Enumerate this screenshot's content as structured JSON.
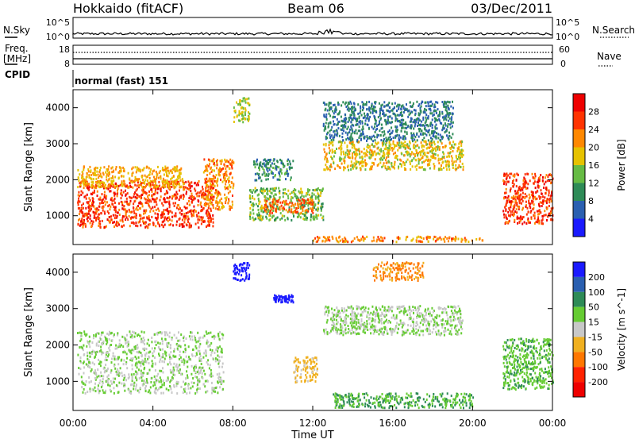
{
  "header": {
    "station": "Hokkaido (fitACF)",
    "beam": "Beam 06",
    "date": "03/Dec/2011"
  },
  "top_panels": {
    "nsky": {
      "label": "N.Sky",
      "ticks": [
        "10^5",
        "10^0"
      ]
    },
    "nsearch": {
      "label": "N.Search",
      "ticks": [
        "10^5",
        "10^0"
      ]
    },
    "freq": {
      "label_line1": "Freq.",
      "label_line2": "[MHz]",
      "ticks": [
        "18",
        "8"
      ]
    },
    "nave": {
      "label": "Nave",
      "ticks": [
        "60",
        "0"
      ]
    },
    "cpid": {
      "label": "CPID",
      "value": "normal (fast) 151"
    }
  },
  "chart_data": [
    {
      "type": "heatmap",
      "name": "power",
      "ylabel": "Slant Range [km]",
      "xlabel": "Time UT",
      "x_ticks": [
        "00:00",
        "04:00",
        "08:00",
        "12:00",
        "16:00",
        "20:00",
        "00:00"
      ],
      "x_range_hours": [
        0,
        24
      ],
      "y_ticks": [
        1000,
        2000,
        3000,
        4000
      ],
      "y_range_km": [
        200,
        4500
      ],
      "colorbar": {
        "label": "Power [dB]",
        "tick_labels": [
          "4",
          "8",
          "12",
          "16",
          "20",
          "24",
          "28"
        ],
        "colors": [
          "#1a1aff",
          "#2a5fb0",
          "#2e8b57",
          "#66bb44",
          "#e6c200",
          "#ff8800",
          "#ff3300",
          "#ee0000"
        ]
      },
      "regions": [
        {
          "x": [
            0.2,
            7.0
          ],
          "y": [
            700,
            2000
          ],
          "value": 28
        },
        {
          "x": [
            0.2,
            5.5
          ],
          "y": [
            1800,
            2400
          ],
          "value": 22
        },
        {
          "x": [
            6.5,
            8.0
          ],
          "y": [
            1200,
            2600
          ],
          "value": 24
        },
        {
          "x": [
            8.0,
            8.8
          ],
          "y": [
            3600,
            4300
          ],
          "value": 18
        },
        {
          "x": [
            8.8,
            12.5
          ],
          "y": [
            900,
            1800
          ],
          "value": 16
        },
        {
          "x": [
            9.5,
            12.0
          ],
          "y": [
            1100,
            1500
          ],
          "value": 26
        },
        {
          "x": [
            9.0,
            11.0
          ],
          "y": [
            2000,
            2600
          ],
          "value": 12
        },
        {
          "x": [
            12.5,
            19.5
          ],
          "y": [
            2300,
            3100
          ],
          "value": 20
        },
        {
          "x": [
            12.5,
            19.0
          ],
          "y": [
            3100,
            4200
          ],
          "value": 10
        },
        {
          "x": [
            12.0,
            20.5
          ],
          "y": [
            300,
            450
          ],
          "value": 24
        },
        {
          "x": [
            21.5,
            24.0
          ],
          "y": [
            800,
            2200
          ],
          "value": 28
        }
      ]
    },
    {
      "type": "heatmap",
      "name": "velocity",
      "ylabel": "Slant Range [km]",
      "xlabel": "Time UT",
      "x_ticks": [
        "00:00",
        "04:00",
        "08:00",
        "12:00",
        "16:00",
        "20:00",
        "00:00"
      ],
      "x_range_hours": [
        0,
        24
      ],
      "y_ticks": [
        1000,
        2000,
        3000,
        4000
      ],
      "y_range_km": [
        200,
        4500
      ],
      "colorbar": {
        "label": "Velocity [m s^-1]",
        "tick_labels": [
          "200",
          "100",
          "50",
          "15",
          "-15",
          "-50",
          "-100",
          "-200"
        ],
        "colors": [
          "#1a1aff",
          "#2a5fb0",
          "#2e8b57",
          "#66cc33",
          "#c8c8c8",
          "#f0b020",
          "#ff7700",
          "#ff2200",
          "#ee0000"
        ]
      },
      "regions": [
        {
          "x": [
            0.2,
            7.5
          ],
          "y": [
            700,
            2400
          ],
          "value": 0
        },
        {
          "x": [
            8.0,
            8.8
          ],
          "y": [
            3800,
            4300
          ],
          "value": 200
        },
        {
          "x": [
            10.0,
            11.0
          ],
          "y": [
            3200,
            3400
          ],
          "value": 200
        },
        {
          "x": [
            11.0,
            12.2
          ],
          "y": [
            1000,
            1700
          ],
          "value": -40
        },
        {
          "x": [
            12.5,
            19.5
          ],
          "y": [
            2300,
            3100
          ],
          "value": 0
        },
        {
          "x": [
            15.0,
            17.5
          ],
          "y": [
            3800,
            4300
          ],
          "value": -80
        },
        {
          "x": [
            13.0,
            20.0
          ],
          "y": [
            300,
            700
          ],
          "value": 30
        },
        {
          "x": [
            21.5,
            24.0
          ],
          "y": [
            800,
            2200
          ],
          "value": 20
        }
      ]
    }
  ]
}
